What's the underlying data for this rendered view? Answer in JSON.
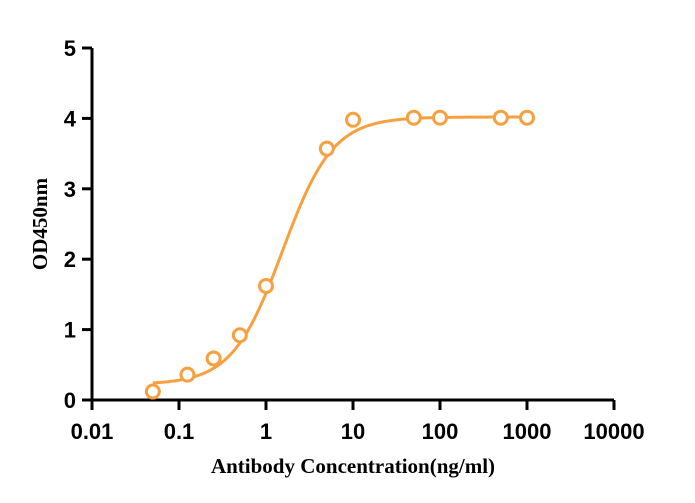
{
  "chart_data": {
    "type": "scatter",
    "title": "",
    "xlabel": "Antibody Concentration(ng/ml)",
    "ylabel": "OD450nm",
    "x_scale": "log",
    "xlim": [
      0.01,
      10000
    ],
    "ylim": [
      0,
      5
    ],
    "x_ticks": [
      0.01,
      0.1,
      1,
      10,
      100,
      1000,
      10000
    ],
    "x_tick_labels": [
      "0.01",
      "0.1",
      "1",
      "10",
      "100",
      "1000",
      "10000"
    ],
    "y_ticks": [
      0,
      1,
      2,
      3,
      4,
      5
    ],
    "y_tick_labels": [
      "0",
      "1",
      "2",
      "3",
      "4",
      "5"
    ],
    "grid": false,
    "legend": "none",
    "series": [
      {
        "x": [
          0.05,
          0.125,
          0.25,
          0.5,
          1,
          5,
          10,
          50,
          100,
          500,
          1000
        ],
        "y": [
          0.12,
          0.36,
          0.59,
          0.92,
          1.62,
          3.57,
          3.98,
          4.01,
          4.01,
          4.01,
          4.01
        ],
        "color": "#f7a040",
        "marker": "open-circle",
        "fit_curve": "four-parameter-logistic"
      }
    ]
  }
}
